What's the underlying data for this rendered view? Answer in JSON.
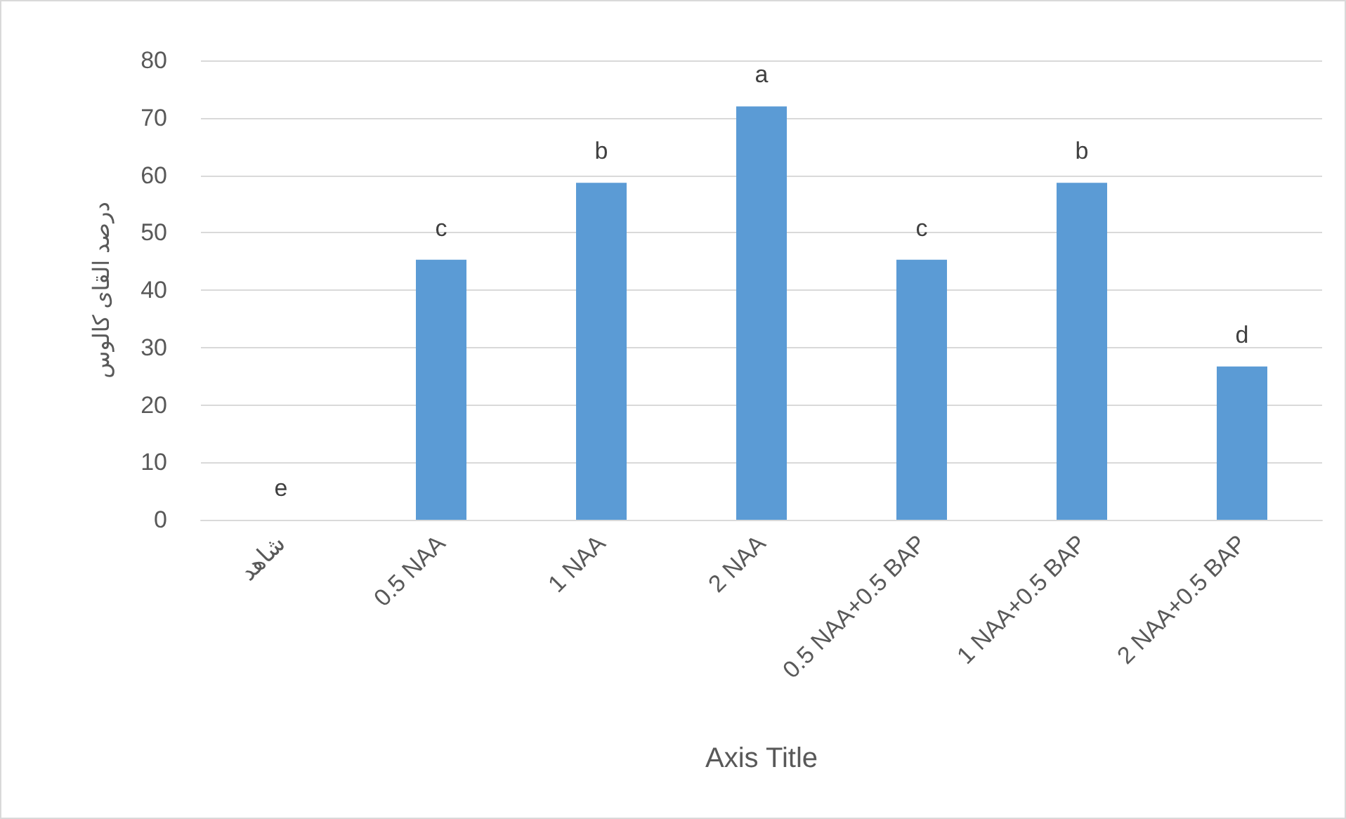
{
  "chart_data": {
    "type": "bar",
    "xlabel": "Axis Title",
    "ylabel": "درصد القای کالوس",
    "categories": [
      "شاهد",
      "0.5 NAA",
      "1 NAA",
      "2 NAA",
      "0.5 NAA+0.5 BAP",
      "1 NAA+0.5 BAP",
      "2 NAA+0.5 BAP"
    ],
    "values": [
      0,
      45.3,
      58.7,
      72,
      45.3,
      58.7,
      26.7
    ],
    "value_labels": [
      "e",
      "c",
      "b",
      "a",
      "c",
      "b",
      "d"
    ],
    "color": "#5b9bd5",
    "ylim": [
      0,
      80
    ],
    "yticks": [
      0,
      10,
      20,
      30,
      40,
      50,
      60,
      70,
      80
    ],
    "grid": "y"
  }
}
